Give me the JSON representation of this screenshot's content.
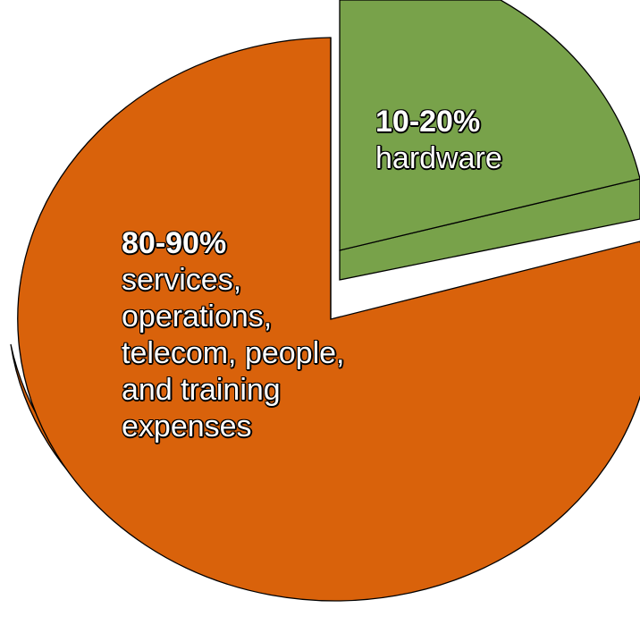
{
  "chart_data": {
    "type": "pie",
    "title": "",
    "slices": [
      {
        "pct_label": "10-20%",
        "lines": [
          "hardware"
        ],
        "value": 15,
        "color": "#78a24a",
        "exploded": true
      },
      {
        "pct_label": "80-90%",
        "lines": [
          "services,",
          "operations,",
          "telecom, people,",
          "and training",
          "expenses"
        ],
        "value": 85,
        "color": "#d9620b",
        "exploded": false
      }
    ]
  }
}
